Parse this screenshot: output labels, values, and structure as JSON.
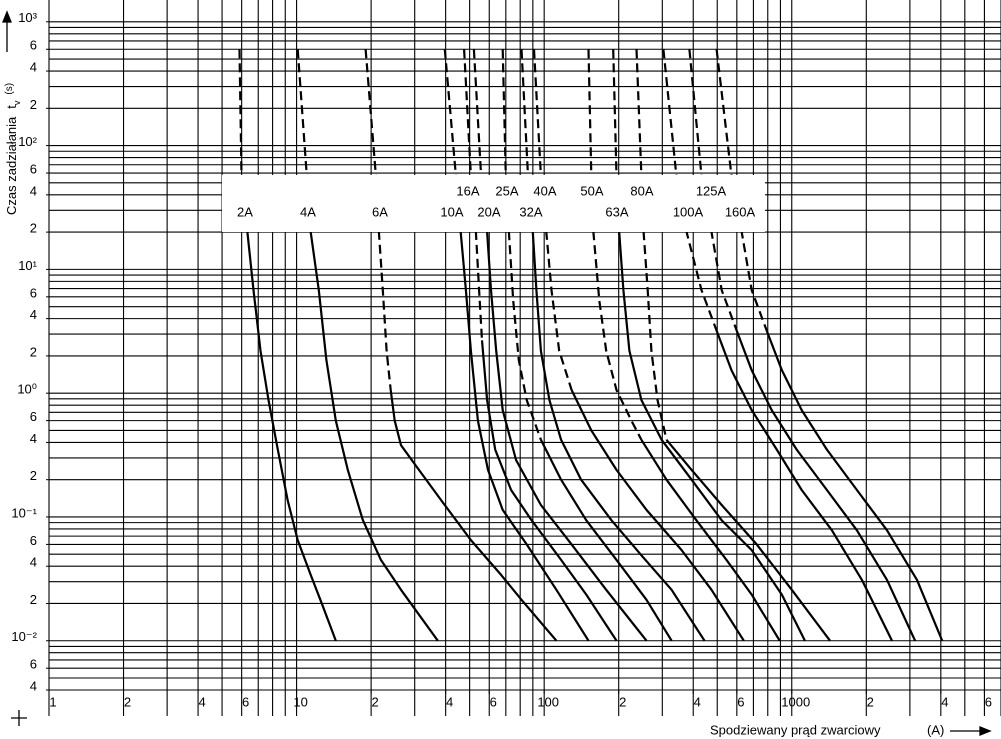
{
  "chart_data": {
    "type": "line",
    "xscale": "log",
    "yscale": "log",
    "xlabel": "Spodziewany prąd zwarciowy",
    "xlabel_unit": "(A)",
    "ylabel": "Czas zadziałania",
    "ylabel_symbol": "t",
    "ylabel_subscript": "v",
    "ylabel_unit": "(s)",
    "xlim": [
      1,
      7000
    ],
    "ylim": [
      0.004,
      1500
    ],
    "xticks": [
      1,
      2,
      4,
      6,
      10,
      {
        "value": 20,
        "label": "2"
      },
      {
        "value": 40,
        "label": "4"
      },
      {
        "value": 60,
        "label": "6"
      },
      100,
      {
        "value": 200,
        "label": "2"
      },
      {
        "value": 400,
        "label": "4"
      },
      {
        "value": 600,
        "label": "6"
      },
      1000,
      {
        "value": 2000,
        "label": "2"
      },
      {
        "value": 4000,
        "label": "4"
      },
      {
        "value": 6000,
        "label": "6"
      }
    ],
    "yticks": [
      {
        "value": 1000,
        "label": "10³"
      },
      {
        "value": 600,
        "label": "6"
      },
      {
        "value": 400,
        "label": "4"
      },
      {
        "value": 200,
        "label": "2"
      },
      {
        "value": 100,
        "label": "10²"
      },
      {
        "value": 60,
        "label": "6"
      },
      {
        "value": 40,
        "label": "4"
      },
      {
        "value": 20,
        "label": "2"
      },
      {
        "value": 10,
        "label": "10¹"
      },
      6,
      4,
      2,
      {
        "value": 1,
        "label": "10⁰"
      },
      {
        "value": 0.6,
        "label": "6"
      },
      {
        "value": 0.4,
        "label": "4"
      },
      {
        "value": 0.2,
        "label": "2"
      },
      {
        "value": 0.1,
        "label": "10⁻¹"
      },
      {
        "value": 0.06,
        "label": "6"
      },
      {
        "value": 0.04,
        "label": "4"
      },
      {
        "value": 0.02,
        "label": "2"
      },
      {
        "value": 0.01,
        "label": "10⁻²"
      },
      {
        "value": 0.006,
        "label": "6"
      },
      {
        "value": 0.004,
        "label": "4"
      }
    ],
    "xgrid": [
      1,
      2,
      3,
      4,
      5,
      6,
      7,
      8,
      9,
      10,
      20,
      30,
      40,
      50,
      60,
      70,
      80,
      90,
      100,
      200,
      300,
      400,
      500,
      600,
      700,
      800,
      900,
      1000,
      2000,
      3000,
      4000,
      5000,
      6000,
      7000
    ],
    "ygrid": [
      0.004,
      0.005,
      0.006,
      0.007,
      0.008,
      0.009,
      0.01,
      0.02,
      0.03,
      0.04,
      0.05,
      0.06,
      0.07,
      0.08,
      0.09,
      0.1,
      0.2,
      0.3,
      0.4,
      0.5,
      0.6,
      0.7,
      0.8,
      0.9,
      1,
      2,
      3,
      4,
      5,
      6,
      7,
      8,
      9,
      10,
      20,
      30,
      40,
      50,
      60,
      70,
      80,
      90,
      100,
      200,
      300,
      400,
      500,
      600,
      700,
      800,
      900,
      1000
    ],
    "color": "#000000",
    "series": [
      {
        "name": "2A",
        "upper": {
          "x": [
            5.88,
            5.99
          ],
          "values": [
            600,
            57
          ]
        },
        "lower": {
          "x": [
            5.99,
            6.33,
            6.7,
            7.15,
            7.7,
            8.4,
            9.2,
            10.1,
            11.4,
            12.7,
            14.4
          ],
          "values": [
            57,
            20,
            6.8,
            2.2,
            0.88,
            0.35,
            0.137,
            0.065,
            0.034,
            0.0195,
            0.01
          ]
        }
      },
      {
        "name": "4A",
        "upper": {
          "x": [
            10.1,
            11
          ],
          "values": [
            600,
            57
          ]
        },
        "lower": {
          "x": [
            11,
            11.4,
            12.3,
            13.2,
            14.4,
            16.1,
            18.5,
            21.9,
            26.4,
            37.2
          ],
          "values": [
            57,
            20,
            6.8,
            1.85,
            0.6,
            0.24,
            0.095,
            0.045,
            0.0258,
            0.01
          ]
        }
      },
      {
        "name": "6A",
        "upper": {
          "x": [
            19,
            20.9,
            21.5,
            22.3,
            23.1,
            24
          ],
          "values": [
            600,
            57,
            20,
            6.8,
            2.2,
            1.06
          ]
        },
        "lower": {
          "x": [
            24,
            24.9,
            26.4,
            29.5,
            38.3,
            50.6,
            67,
            81,
            112
          ],
          "values": [
            1.06,
            0.6,
            0.38,
            0.28,
            0.137,
            0.065,
            0.034,
            0.0214,
            0.01
          ]
        }
      },
      {
        "name": "10A",
        "upper": {
          "x": [
            39.7,
            44,
            46
          ],
          "values": [
            600,
            57,
            20
          ]
        },
        "lower": {
          "x": [
            46,
            48.3,
            50.6,
            54,
            59.3,
            68,
            85,
            112,
            151
          ],
          "values": [
            20,
            6.8,
            2.2,
            0.6,
            0.24,
            0.114,
            0.06,
            0.0258,
            0.01
          ]
        }
      },
      {
        "name": "16A",
        "upper": {
          "x": [
            47.5,
            50.6,
            53,
            54.6,
            56.1
          ],
          "values": [
            600,
            57,
            20,
            6.8,
            2.67
          ]
        },
        "lower": {
          "x": [
            56.1,
            58.8,
            63.4,
            73.5,
            88.6,
            117,
            148,
            196
          ],
          "values": [
            2.67,
            0.88,
            0.35,
            0.165,
            0.095,
            0.045,
            0.0236,
            0.01
          ]
        }
      },
      {
        "name": "20A",
        "upper": {
          "x": [
            52,
            55.6,
            58.8
          ],
          "values": [
            600,
            57,
            20
          ]
        },
        "lower": {
          "x": [
            58.8,
            61,
            64,
            68,
            77,
            97,
            129,
            178,
            259
          ],
          "values": [
            20,
            6.8,
            2.2,
            0.73,
            0.288,
            0.125,
            0.06,
            0.0258,
            0.01
          ]
        }
      },
      {
        "name": "25A",
        "upper": {
          "x": [
            68,
            70,
            72,
            75,
            79,
            85,
            97
          ],
          "values": [
            600,
            57,
            20,
            5.6,
            1.85,
            0.88,
            0.42
          ]
        },
        "lower": {
          "x": [
            97,
            117,
            148,
            196,
            259,
            327
          ],
          "values": [
            0.42,
            0.2,
            0.094,
            0.045,
            0.0214,
            0.01
          ]
        }
      },
      {
        "name": "32A",
        "upper": {
          "x": [
            81,
            86,
            90
          ],
          "values": [
            600,
            57,
            20
          ]
        },
        "lower": {
          "x": [
            90,
            93,
            97,
            105,
            117,
            141,
            187,
            247,
            327,
            444
          ],
          "values": [
            20,
            6.8,
            2.2,
            0.88,
            0.42,
            0.2,
            0.094,
            0.049,
            0.0258,
            0.01
          ]
        }
      },
      {
        "name": "40A",
        "upper": {
          "x": [
            91,
            97,
            102,
            107,
            115,
            129
          ],
          "values": [
            600,
            57,
            20,
            6.8,
            2.2,
            1.06
          ]
        },
        "lower": {
          "x": [
            129,
            155,
            196,
            259,
            359,
            474,
            640
          ],
          "values": [
            1.06,
            0.5,
            0.24,
            0.114,
            0.054,
            0.0258,
            0.01
          ]
        }
      },
      {
        "name": "50A",
        "upper": {
          "x": [
            151,
            155,
            158,
            167,
            178,
            196,
            225,
            247
          ],
          "values": [
            600,
            57,
            20,
            5.6,
            2.2,
            1.06,
            0.6,
            0.42
          ]
        },
        "lower": {
          "x": [
            247,
            312,
            412,
            545,
            689,
            894
          ],
          "values": [
            0.42,
            0.2,
            0.094,
            0.045,
            0.0236,
            0.01
          ]
        }
      },
      {
        "name": "63A",
        "upper": {
          "x": [
            190,
            196,
            201
          ],
          "values": [
            600,
            57,
            20
          ]
        },
        "lower": {
          "x": [
            201,
            209,
            221,
            247,
            298,
            394,
            521,
            689,
            912,
            1130
          ],
          "values": [
            20,
            6.8,
            2.2,
            0.88,
            0.42,
            0.2,
            0.094,
            0.054,
            0.0235,
            0.01
          ]
        }
      },
      {
        "name": "80A",
        "upper": {
          "x": [
            236,
            247,
            252,
            262,
            271,
            287,
            312
          ],
          "values": [
            600,
            57,
            20,
            6.8,
            2.2,
            0.88,
            0.42
          ]
        },
        "lower": {
          "x": [
            312,
            394,
            521,
            722,
            1000,
            1427
          ],
          "values": [
            0.42,
            0.24,
            0.125,
            0.06,
            0.0258,
            0.01
          ]
        }
      },
      {
        "name": "100A",
        "upper": {
          "x": [
            303,
            342,
            376,
            432,
            497
          ],
          "values": [
            600,
            57,
            20,
            6.8,
            3.2
          ]
        },
        "lower": {
          "x": [
            497,
            571,
            689,
            870,
            1097,
            1452,
            1920,
            2540
          ],
          "values": [
            3.2,
            1.53,
            0.73,
            0.35,
            0.165,
            0.078,
            0.031,
            0.01
          ]
        }
      },
      {
        "name": "125A",
        "upper": {
          "x": [
            386,
            432,
            474,
            521,
            599
          ],
          "values": [
            600,
            57,
            20,
            6.8,
            3.2
          ]
        },
        "lower": {
          "x": [
            599,
            689,
            830,
            1047,
            1386,
            1833,
            2425,
            3150
          ],
          "values": [
            3.2,
            1.53,
            0.73,
            0.35,
            0.165,
            0.078,
            0.031,
            0.01
          ]
        }
      },
      {
        "name": "160A",
        "upper": {
          "x": [
            497,
            571,
            628,
            689,
            792
          ],
          "values": [
            600,
            57,
            20,
            6.8,
            3.2
          ]
        },
        "lower": {
          "x": [
            792,
            912,
            1097,
            1386,
            1833,
            2425,
            3206,
            4050
          ],
          "values": [
            3.2,
            1.53,
            0.73,
            0.35,
            0.165,
            0.078,
            0.031,
            0.01
          ]
        }
      }
    ]
  }
}
